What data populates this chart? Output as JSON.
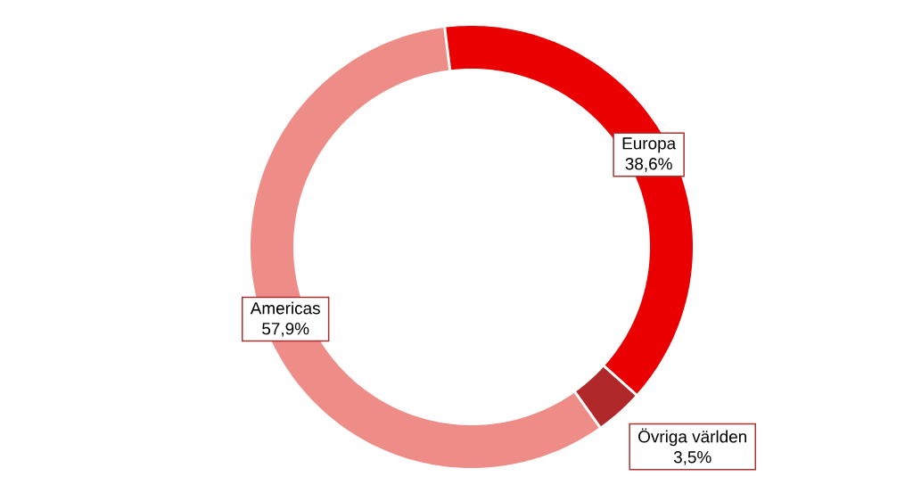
{
  "chart_data": {
    "type": "donut",
    "categories": [
      "Europa",
      "Övriga världen",
      "Americas"
    ],
    "values": [
      38.6,
      3.5,
      57.9
    ],
    "colors": [
      "#ea0000",
      "#b0282a",
      "#ee8d88"
    ],
    "value_labels": [
      "38,6%",
      "3,5%",
      "57,9%"
    ]
  }
}
